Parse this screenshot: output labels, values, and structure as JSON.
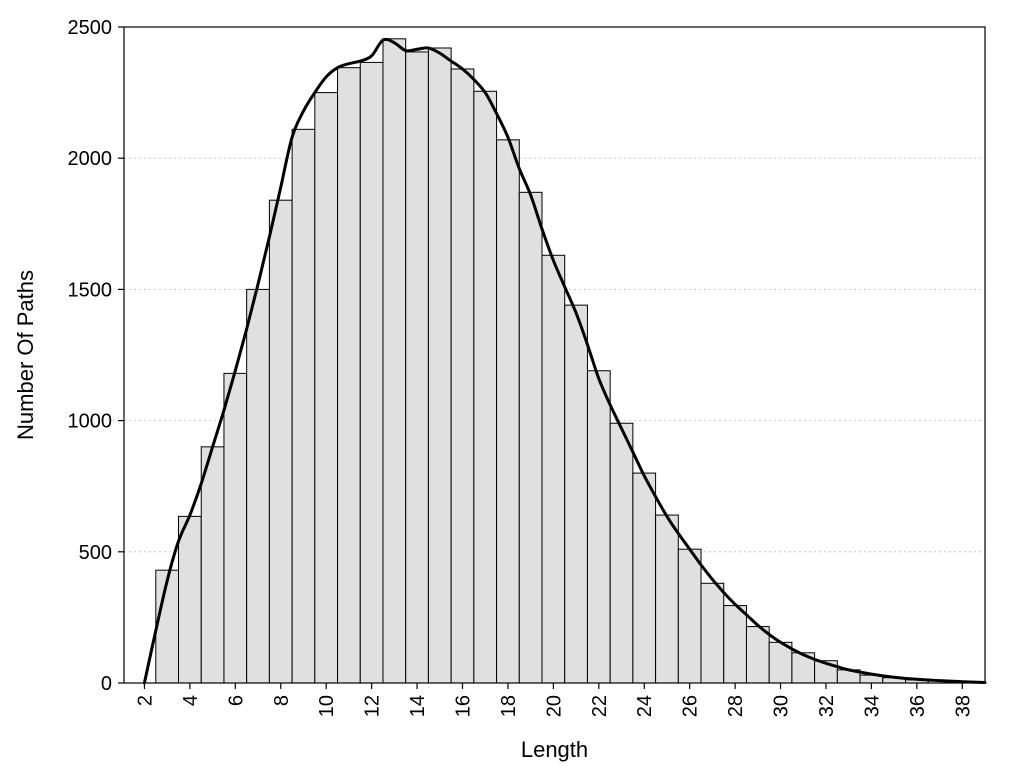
{
  "chart_data": {
    "type": "bar",
    "title": "",
    "xlabel": "Length",
    "ylabel": "Number Of Paths",
    "x": [
      3,
      4,
      5,
      6,
      7,
      8,
      9,
      10,
      11,
      12,
      13,
      14,
      15,
      16,
      17,
      18,
      19,
      20,
      21,
      22,
      23,
      24,
      25,
      26,
      27,
      28,
      29,
      30,
      31,
      32,
      33,
      34,
      35,
      36,
      37,
      38
    ],
    "values": [
      430,
      635,
      900,
      1180,
      1500,
      1840,
      2110,
      2250,
      2345,
      2365,
      2455,
      2405,
      2420,
      2340,
      2255,
      2070,
      1870,
      1630,
      1440,
      1190,
      990,
      800,
      640,
      510,
      380,
      295,
      215,
      155,
      115,
      85,
      50,
      30,
      20,
      12,
      8,
      5
    ],
    "curve": {
      "x": [
        2,
        2.5,
        3,
        3.5,
        4,
        4.5,
        5,
        5.5,
        6,
        6.5,
        7,
        7.5,
        8,
        8.5,
        9,
        9.5,
        10,
        10.5,
        11,
        11.5,
        12,
        12.5,
        13,
        13.5,
        14,
        14.5,
        15,
        15.5,
        16,
        16.5,
        17,
        17.5,
        18,
        18.5,
        19,
        19.5,
        20,
        20.5,
        21,
        21.5,
        22,
        22.5,
        23,
        23.5,
        24,
        24.5,
        25,
        25.5,
        26,
        26.5,
        27,
        27.5,
        28,
        28.5,
        29,
        29.5,
        30,
        30.5,
        31,
        31.5,
        32,
        32.5,
        33,
        34,
        35,
        36,
        37,
        38,
        39
      ],
      "y": [
        0,
        200,
        390,
        540,
        640,
        760,
        900,
        1040,
        1190,
        1350,
        1520,
        1700,
        1890,
        2080,
        2180,
        2250,
        2310,
        2345,
        2360,
        2370,
        2390,
        2450,
        2440,
        2410,
        2415,
        2420,
        2400,
        2370,
        2340,
        2300,
        2250,
        2170,
        2080,
        1960,
        1860,
        1730,
        1610,
        1510,
        1410,
        1290,
        1160,
        1060,
        970,
        880,
        790,
        710,
        635,
        570,
        510,
        450,
        395,
        345,
        300,
        260,
        220,
        185,
        155,
        130,
        108,
        90,
        75,
        62,
        50,
        34,
        22,
        14,
        9,
        5,
        2
      ]
    },
    "categories": [
      "2",
      "4",
      "6",
      "8",
      "10",
      "12",
      "14",
      "16",
      "18",
      "20",
      "22",
      "24",
      "26",
      "28",
      "30",
      "32",
      "34",
      "36",
      "38"
    ],
    "yticks": [
      0,
      500,
      1000,
      1500,
      2000,
      2500
    ],
    "ylim": [
      0,
      2500
    ],
    "xlim": [
      1.1,
      39
    ],
    "grid": true,
    "legend": "none"
  }
}
